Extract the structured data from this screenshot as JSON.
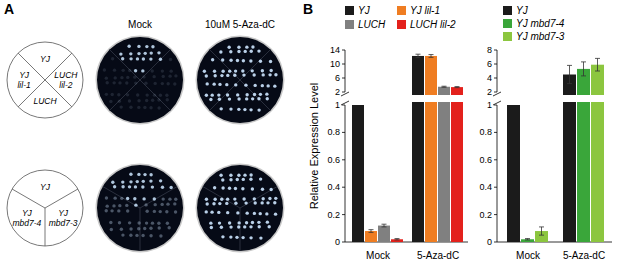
{
  "panel_labels": [
    "A",
    "B"
  ],
  "panel_a": {
    "conditions": [
      "Mock",
      "10uM 5-Aza-dC"
    ],
    "plates": [
      {
        "sectors": [
          "YJ",
          "YJ lil-1",
          "LUCH",
          "LUCH lil-2"
        ]
      },
      {
        "sectors": [
          "YJ",
          "YJ mbd7-4",
          "YJ mbd7-3"
        ]
      }
    ]
  },
  "chart_data": [
    {
      "type": "bar",
      "y_label": "Relative Expression Level",
      "categories": [
        "Mock",
        "5-Aza-dC"
      ],
      "series": [
        {
          "name": "YJ",
          "color": "#1b1b1b",
          "values": [
            1,
            12.3
          ],
          "errors": [
            0,
            0.5
          ]
        },
        {
          "name": "YJ lil-1",
          "color": "#ef7d22",
          "values": [
            0.08,
            12.3
          ],
          "errors": [
            0.01,
            0.4
          ]
        },
        {
          "name": "LUCH",
          "color": "#808080",
          "values": [
            0.12,
            3.5
          ],
          "errors": [
            0.01,
            0.15
          ]
        },
        {
          "name": "LUCH lil-2",
          "color": "#e3211c",
          "values": [
            0.02,
            3.4
          ],
          "errors": [
            0.005,
            0.15
          ]
        }
      ],
      "ylim": [
        0,
        14
      ],
      "yticks": [
        0,
        0.2,
        0.4,
        0.6,
        0.8,
        1,
        2,
        6,
        10,
        14
      ],
      "y_break": [
        1,
        2
      ],
      "legend": "top",
      "grid": false
    },
    {
      "type": "bar",
      "categories": [
        "Mock",
        "5-Aza-dC"
      ],
      "series": [
        {
          "name": "YJ",
          "color": "#1b1b1b",
          "values": [
            1,
            4.5
          ],
          "errors": [
            0,
            1.3
          ]
        },
        {
          "name": "YJ mbd7-4",
          "color": "#3aa63a",
          "values": [
            0.02,
            5.3
          ],
          "errors": [
            0.005,
            1.0
          ]
        },
        {
          "name": "YJ mbd7-3",
          "color": "#8cc63f",
          "values": [
            0.08,
            5.9
          ],
          "errors": [
            0.03,
            0.9
          ]
        }
      ],
      "ylim": [
        0,
        8
      ],
      "yticks": [
        0,
        0.2,
        0.4,
        0.6,
        0.8,
        1,
        2,
        4,
        6,
        8
      ],
      "y_break": [
        1,
        2
      ],
      "legend": "top",
      "grid": false
    }
  ]
}
